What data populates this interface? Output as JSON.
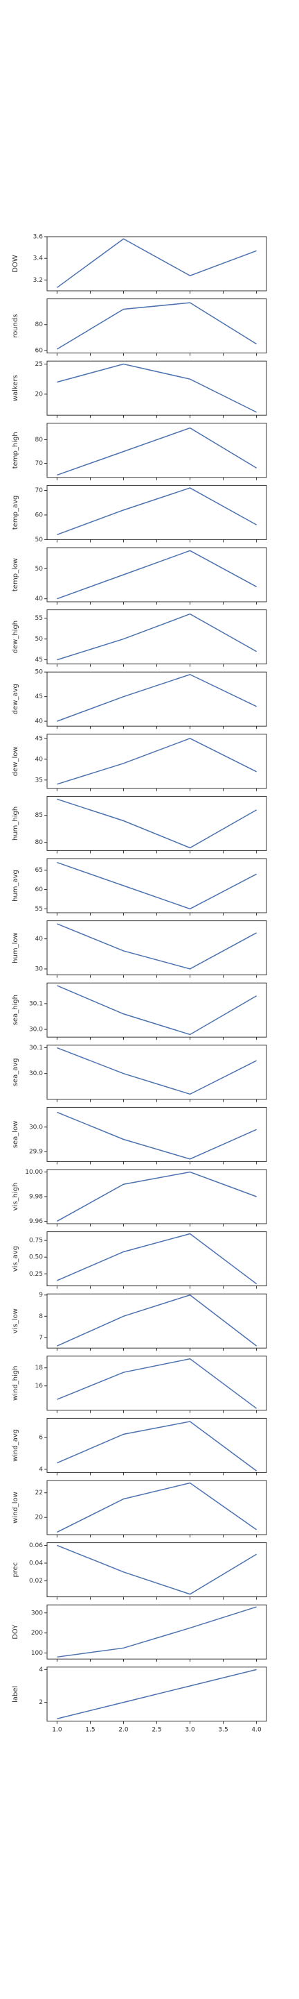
{
  "chart_data": [
    {
      "type": "line",
      "ylabel": "DOW",
      "x": [
        1,
        2,
        3,
        4
      ],
      "values": [
        3.13,
        3.58,
        3.24,
        3.47
      ],
      "ylim": [
        3.1,
        3.6
      ],
      "yticks": [
        3.2,
        3.4,
        3.6
      ]
    },
    {
      "type": "line",
      "ylabel": "rounds",
      "x": [
        1,
        2,
        3,
        4
      ],
      "values": [
        61,
        92,
        97,
        65
      ],
      "ylim": [
        58,
        100
      ],
      "yticks": [
        60,
        80
      ]
    },
    {
      "type": "line",
      "ylabel": "walkers",
      "x": [
        1,
        2,
        3,
        4
      ],
      "values": [
        22,
        25,
        22.5,
        17
      ],
      "ylim": [
        16.5,
        25.5
      ],
      "yticks": [
        20,
        25
      ]
    },
    {
      "type": "line",
      "ylabel": "temp_high",
      "x": [
        1,
        2,
        3,
        4
      ],
      "values": [
        65,
        75,
        85,
        68
      ],
      "ylim": [
        64,
        87
      ],
      "yticks": [
        70,
        80
      ]
    },
    {
      "type": "line",
      "ylabel": "temp_avg",
      "x": [
        1,
        2,
        3,
        4
      ],
      "values": [
        52,
        62,
        71,
        56
      ],
      "ylim": [
        50,
        72
      ],
      "yticks": [
        50,
        60,
        70
      ]
    },
    {
      "type": "line",
      "ylabel": "temp_low",
      "x": [
        1,
        2,
        3,
        4
      ],
      "values": [
        40,
        48,
        56,
        44
      ],
      "ylim": [
        39,
        57
      ],
      "yticks": [
        40,
        50
      ]
    },
    {
      "type": "line",
      "ylabel": "dew_high",
      "x": [
        1,
        2,
        3,
        4
      ],
      "values": [
        45,
        50,
        56,
        47
      ],
      "ylim": [
        44,
        57
      ],
      "yticks": [
        45,
        50,
        55
      ]
    },
    {
      "type": "line",
      "ylabel": "dew_avg",
      "x": [
        1,
        2,
        3,
        4
      ],
      "values": [
        40,
        45,
        49.5,
        43
      ],
      "ylim": [
        39,
        50
      ],
      "yticks": [
        40,
        45,
        50
      ]
    },
    {
      "type": "line",
      "ylabel": "dew_low",
      "x": [
        1,
        2,
        3,
        4
      ],
      "values": [
        34,
        39,
        45,
        37
      ],
      "ylim": [
        33,
        46
      ],
      "yticks": [
        35,
        40,
        45
      ]
    },
    {
      "type": "line",
      "ylabel": "hum_high",
      "x": [
        1,
        2,
        3,
        4
      ],
      "values": [
        88,
        84,
        79,
        86
      ],
      "ylim": [
        78.5,
        88.5
      ],
      "yticks": [
        80,
        85
      ]
    },
    {
      "type": "line",
      "ylabel": "hum_avg",
      "x": [
        1,
        2,
        3,
        4
      ],
      "values": [
        67,
        61,
        55,
        64
      ],
      "ylim": [
        54,
        68
      ],
      "yticks": [
        55,
        60,
        65
      ]
    },
    {
      "type": "line",
      "ylabel": "hum_low",
      "x": [
        1,
        2,
        3,
        4
      ],
      "values": [
        45,
        36,
        30,
        42
      ],
      "ylim": [
        28,
        46
      ],
      "yticks": [
        30,
        40
      ]
    },
    {
      "type": "line",
      "ylabel": "sea_high",
      "x": [
        1,
        2,
        3,
        4
      ],
      "values": [
        30.17,
        30.06,
        29.98,
        30.13
      ],
      "ylim": [
        29.97,
        30.18
      ],
      "yticks": [
        {
          "value": 30,
          "label": "30.0"
        },
        30.1
      ]
    },
    {
      "type": "line",
      "ylabel": "sea_avg",
      "x": [
        1,
        2,
        3,
        4
      ],
      "values": [
        30.1,
        30.0,
        29.92,
        30.05
      ],
      "ylim": [
        29.9,
        30.11
      ],
      "yticks": [
        {
          "value": 30,
          "label": "30.0"
        },
        30.1
      ]
    },
    {
      "type": "line",
      "ylabel": "sea_low",
      "x": [
        1,
        2,
        3,
        4
      ],
      "values": [
        30.06,
        29.95,
        29.87,
        29.99
      ],
      "ylim": [
        29.86,
        30.08
      ],
      "yticks": [
        29.9,
        {
          "value": 30,
          "label": "30.0"
        }
      ]
    },
    {
      "type": "line",
      "ylabel": "vis_high",
      "x": [
        1,
        2,
        3,
        4
      ],
      "values": [
        9.96,
        9.99,
        10.0,
        9.98
      ],
      "ylim": [
        9.958,
        10.002
      ],
      "yticks": [
        9.96,
        9.98,
        {
          "value": 10,
          "label": "10.00"
        }
      ]
    },
    {
      "type": "line",
      "ylabel": "vis_avg",
      "x": [
        1,
        2,
        3,
        4
      ],
      "values": [
        0.15,
        0.58,
        0.85,
        0.1
      ],
      "ylim": [
        0.07,
        0.88
      ],
      "yticks": [
        0.25,
        {
          "value": 0.5,
          "label": "0.50"
        },
        0.75
      ]
    },
    {
      "type": "line",
      "ylabel": "vis_low",
      "x": [
        1,
        2,
        3,
        4
      ],
      "values": [
        6.6,
        8.0,
        9.0,
        6.6
      ],
      "ylim": [
        6.5,
        9.05
      ],
      "yticks": [
        7,
        8,
        9
      ]
    },
    {
      "type": "line",
      "ylabel": "wind_high",
      "x": [
        1,
        2,
        3,
        4
      ],
      "values": [
        14.5,
        17.5,
        19,
        13.5
      ],
      "ylim": [
        13.3,
        19.3
      ],
      "yticks": [
        16,
        18
      ]
    },
    {
      "type": "line",
      "ylabel": "wind_avg",
      "x": [
        1,
        2,
        3,
        4
      ],
      "values": [
        4.4,
        6.2,
        7.0,
        3.9
      ],
      "ylim": [
        3.8,
        7.2
      ],
      "yticks": [
        4,
        6
      ]
    },
    {
      "type": "line",
      "ylabel": "wind_low",
      "x": [
        1,
        2,
        3,
        4
      ],
      "values": [
        18.8,
        21.5,
        22.8,
        19
      ],
      "ylim": [
        18.6,
        23
      ],
      "yticks": [
        20,
        22
      ]
    },
    {
      "type": "line",
      "ylabel": "prec",
      "x": [
        1,
        2,
        3,
        4
      ],
      "values": [
        0.06,
        0.03,
        0.005,
        0.05
      ],
      "ylim": [
        0.002,
        0.063
      ],
      "yticks": [
        0.02,
        0.04,
        0.06
      ]
    },
    {
      "type": "line",
      "ylabel": "DOY",
      "x": [
        1,
        2,
        3,
        4
      ],
      "values": [
        80,
        125,
        225,
        330
      ],
      "ylim": [
        70,
        340
      ],
      "yticks": [
        100,
        200,
        300
      ]
    },
    {
      "type": "line",
      "ylabel": "label",
      "x": [
        1,
        2,
        3,
        4
      ],
      "values": [
        1,
        2,
        3,
        4
      ],
      "ylim": [
        0.85,
        4.15
      ],
      "yticks": [
        2,
        4
      ],
      "xlim": [
        0.85,
        4.15
      ],
      "xticks": [
        {
          "value": 1,
          "label": "1.0"
        },
        1.5,
        {
          "value": 2,
          "label": "2.0"
        },
        2.5,
        {
          "value": 3,
          "label": "3.0"
        },
        3.5,
        {
          "value": 4,
          "label": "4.0"
        }
      ]
    }
  ]
}
